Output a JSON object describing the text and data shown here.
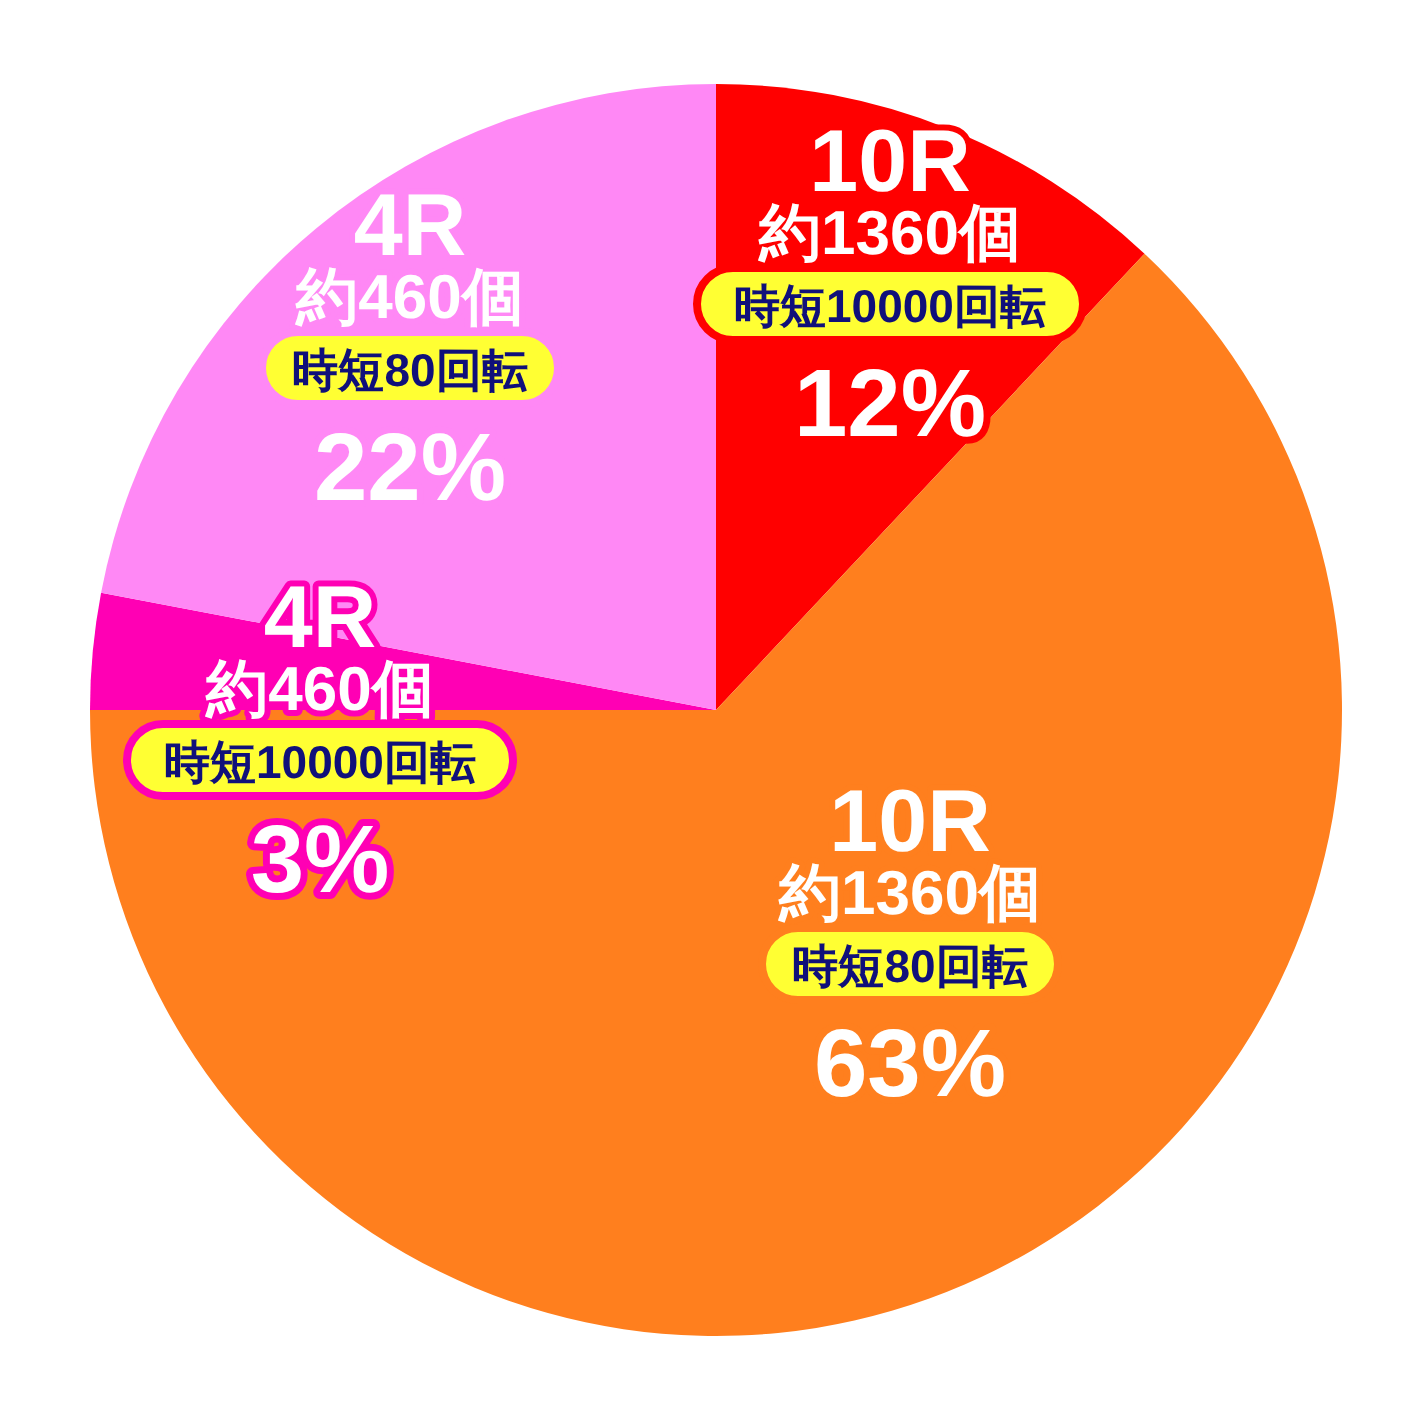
{
  "chart_data": {
    "type": "pie",
    "categories": [
      "10R\n約1360個",
      "10R\n約1360個",
      "4R\n約460個",
      "4R\n約460個"
    ],
    "annotations": [
      "時短10000回転",
      "時短80回転",
      "時短10000回転",
      "時短80回転"
    ],
    "values": [
      12,
      63,
      3,
      22
    ],
    "value_labels": [
      "12%",
      "63%",
      "3%",
      "22%"
    ],
    "colors": [
      "#ff0000",
      "#ff7f1e",
      "#ff00b4",
      "#ff88f5"
    ]
  }
}
